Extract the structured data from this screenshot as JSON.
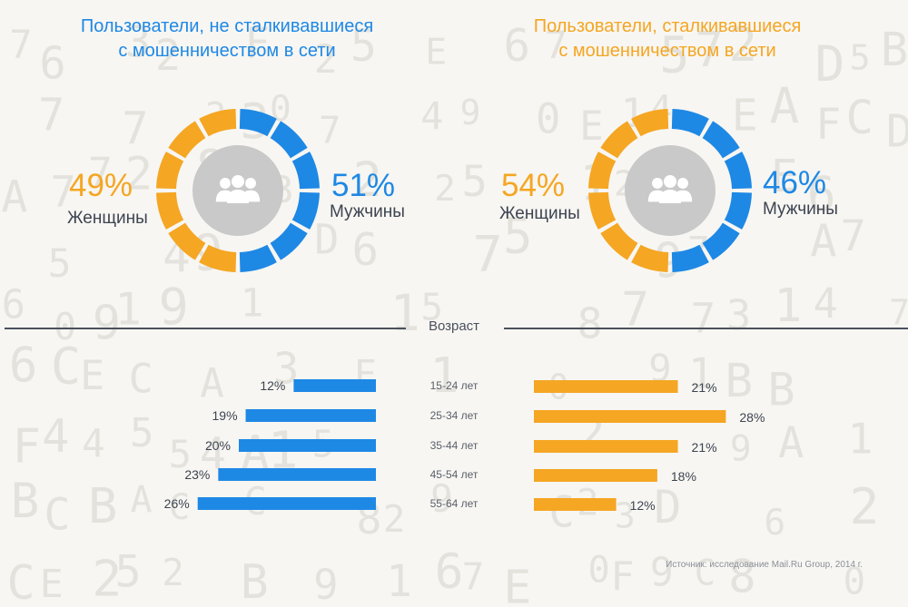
{
  "colors": {
    "blue": "#1e88e5",
    "orange": "#f5a623",
    "text": "#3d4451",
    "icon_bg": "#c9c9c9"
  },
  "left_panel": {
    "title_line1": "Пользователи, не сталкивавшиеся",
    "title_line2": "с мошенничеством в сети",
    "women_pct": "49%",
    "women_label": "Женщины",
    "men_pct": "51%",
    "men_label": "Мужчины"
  },
  "right_panel": {
    "title_line1": "Пользователи, сталкивавшиеся",
    "title_line2": "с мошенничеством в сети",
    "women_pct": "54%",
    "women_label": "Женщины",
    "men_pct": "46%",
    "men_label": "Мужчины"
  },
  "age_section_title": "Возраст",
  "source": "Источник: исследование Mail.Ru Group, 2014 г.",
  "chart_data": [
    {
      "type": "pie",
      "categories": [
        "Женщины",
        "Мужчины"
      ],
      "values": [
        49,
        51
      ]
    },
    {
      "type": "pie",
      "categories": [
        "Женщины",
        "Мужчины"
      ],
      "values": [
        54,
        46
      ]
    },
    {
      "type": "bar",
      "categories": [
        "15-24 лет",
        "25-34 лет",
        "35-44 лет",
        "45-54 лет",
        "55-64 лет"
      ],
      "series": [
        {
          "values": [
            12,
            19,
            20,
            23,
            26
          ],
          "labels": [
            "12%",
            "19%",
            "20%",
            "23%",
            "26%"
          ]
        },
        {
          "values": [
            21,
            28,
            21,
            18,
            12
          ],
          "labels": [
            "21%",
            "28%",
            "21%",
            "18%",
            "12%"
          ]
        }
      ]
    }
  ]
}
